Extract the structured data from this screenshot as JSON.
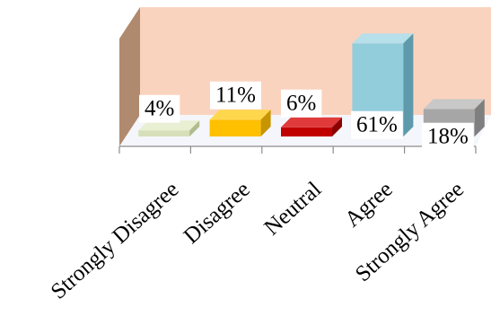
{
  "chart_data": {
    "type": "bar",
    "style": "3d",
    "categories": [
      "Strongly Disagree",
      "Disagree",
      "Neutral",
      "Agree",
      "Strongly Agree"
    ],
    "values": [
      4,
      11,
      6,
      61,
      18
    ],
    "value_labels": [
      "4%",
      "11%",
      "6%",
      "61%",
      "18%"
    ],
    "unit": "%",
    "ylim": [
      0,
      70
    ],
    "legend": "none",
    "grid": false,
    "colors": {
      "wall": "#FAD3BE",
      "wall_side": "#B08A6E",
      "floor": "#F4F6FB",
      "axis": "#8C8C8C",
      "bars": [
        {
          "front": "#D6DFB9",
          "top": "#E9EFD3",
          "side": "#AFBC8D"
        },
        {
          "front": "#FFC000",
          "top": "#FFD74D",
          "side": "#C79500"
        },
        {
          "front": "#C00000",
          "top": "#E03A3A",
          "side": "#8B0000"
        },
        {
          "front": "#92CDDC",
          "top": "#B7E0EA",
          "side": "#5E9AAB"
        },
        {
          "front": "#A6A6A6",
          "top": "#C8C8C8",
          "side": "#7F7F7F"
        }
      ]
    }
  }
}
